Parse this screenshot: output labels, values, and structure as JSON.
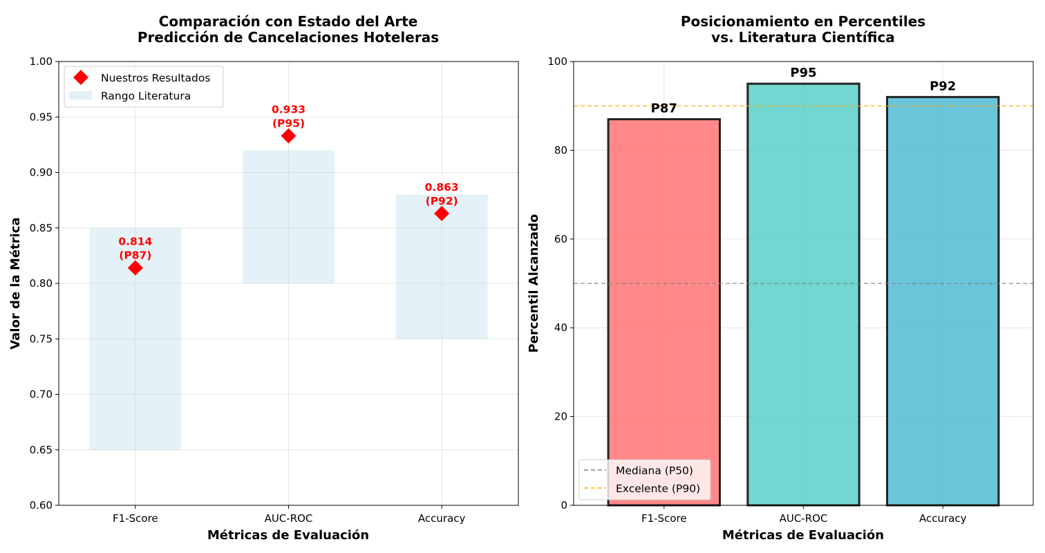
{
  "chart_data": [
    {
      "type": "scatter",
      "title_lines": [
        "Comparación con Estado del Arte",
        "Predicción de Cancelaciones Hoteleras"
      ],
      "xlabel": "Métricas de Evaluación",
      "ylabel": "Valor de la Métrica",
      "categories": [
        "F1-Score",
        "AUC-ROC",
        "Accuracy"
      ],
      "ylim": [
        0.6,
        1.0
      ],
      "yticks": [
        "0.60",
        "0.65",
        "0.70",
        "0.75",
        "0.80",
        "0.85",
        "0.90",
        "0.95",
        "1.00"
      ],
      "grid": true,
      "legend_position": "top-left",
      "series": [
        {
          "name": "Nuestros Resultados",
          "marker": "diamond",
          "color": "#ff0000",
          "values": [
            0.814,
            0.933,
            0.863
          ],
          "labels": [
            [
              "0.814",
              "(P87)"
            ],
            [
              "0.933",
              "(P95)"
            ],
            [
              "0.863",
              "(P92)"
            ]
          ]
        },
        {
          "name": "Rango Literatura",
          "type": "range-bar",
          "color": "#add8e6",
          "ranges": [
            [
              0.65,
              0.85
            ],
            [
              0.8,
              0.92
            ],
            [
              0.75,
              0.88
            ]
          ]
        }
      ]
    },
    {
      "type": "bar",
      "title_lines": [
        "Posicionamiento en Percentiles",
        "vs. Literatura Científica"
      ],
      "xlabel": "Métricas de Evaluación",
      "ylabel": "Percentil Alcanzado",
      "categories": [
        "F1-Score",
        "AUC-ROC",
        "Accuracy"
      ],
      "ylim": [
        0,
        100
      ],
      "yticks": [
        "0",
        "20",
        "40",
        "60",
        "80",
        "100"
      ],
      "grid": true,
      "legend_position": "bottom-left",
      "values": [
        87,
        95,
        92
      ],
      "bar_labels": [
        "P87",
        "P95",
        "P92"
      ],
      "colors": [
        "#ff6b6b",
        "#4ecdc4",
        "#45b7d1"
      ],
      "reference_lines": [
        {
          "name": "Mediana (P50)",
          "value": 50,
          "color": "#808080"
        },
        {
          "name": "Excelente (P90)",
          "value": 90,
          "color": "#ffa500"
        }
      ]
    }
  ]
}
